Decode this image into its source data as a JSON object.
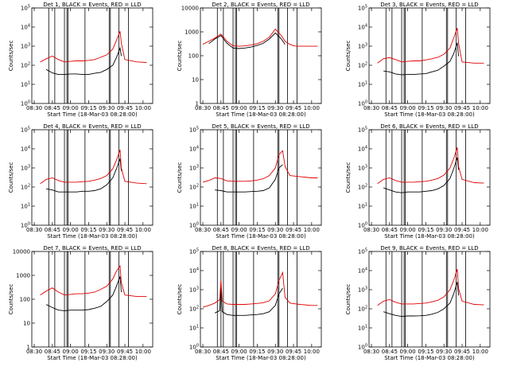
{
  "figure": {
    "xlabel": "Start Time (18-Mar-03 08:28:00)",
    "ylabel": "Counts/sec",
    "xticks": [
      "08:30",
      "08:45",
      "09:00",
      "09:15",
      "09:30",
      "09:45",
      "10:00"
    ],
    "colors": {
      "events": "#000000",
      "lld": "#e00000"
    }
  },
  "chart_data": [
    {
      "type": "line",
      "title": "Det 1, BLACK = Events, RED = LLD",
      "xlabel": "Start Time (18-Mar-03 08:28:00)",
      "ylabel": "Counts/sec",
      "yticks": [
        "10^0",
        "10^1",
        "10^2",
        "10^3",
        "10^4",
        "10^5"
      ],
      "ylim": [
        1,
        100000
      ],
      "xlim": [
        "08:28",
        "10:08"
      ],
      "log_y": true,
      "vertical_markers": [
        "08:42",
        "08:47",
        "08:55",
        "08:57",
        "08:58",
        "09:12",
        "09:32",
        "09:33",
        "09:40",
        "09:48"
      ],
      "x": [
        "08:35",
        "08:40",
        "08:45",
        "08:50",
        "08:55",
        "09:00",
        "09:05",
        "09:10",
        "09:15",
        "09:20",
        "09:25",
        "09:30",
        "09:35",
        "09:38",
        "09:41",
        "09:42",
        "09:45",
        "09:55",
        "10:03"
      ],
      "series": [
        {
          "name": "Events",
          "values": [
            null,
            60,
            40,
            33,
            33,
            35,
            35,
            33,
            33,
            38,
            42,
            60,
            100,
            250,
            800,
            300,
            null,
            null,
            null
          ]
        },
        {
          "name": "LLD",
          "values": [
            150,
            220,
            300,
            200,
            150,
            160,
            170,
            170,
            180,
            200,
            260,
            350,
            700,
            2000,
            6000,
            1500,
            200,
            150,
            140
          ]
        }
      ]
    },
    {
      "type": "line",
      "title": "Det 2, BLACK = Events, RED = LLD",
      "xlabel": "Start Time (18-Mar-03 08:28:00)",
      "ylabel": "Counts/sec",
      "yticks": [
        "1",
        "10",
        "100",
        "1000",
        "10000"
      ],
      "ylim": [
        1,
        10000
      ],
      "xlim": [
        "08:28",
        "10:08"
      ],
      "log_y": true,
      "vertical_markers": [
        "08:42",
        "08:47",
        "08:55",
        "08:57",
        "08:58",
        "09:12",
        "09:32",
        "09:33",
        "09:40",
        "09:48"
      ],
      "x": [
        "08:30",
        "08:35",
        "08:40",
        "08:45",
        "08:50",
        "08:55",
        "09:00",
        "09:05",
        "09:10",
        "09:15",
        "09:20",
        "09:25",
        "09:30",
        "09:35",
        "09:38",
        "09:42",
        "09:45",
        "09:48",
        "10:00",
        "10:05"
      ],
      "series": [
        {
          "name": "Events",
          "values": [
            null,
            320,
            500,
            700,
            330,
            210,
            200,
            210,
            230,
            270,
            330,
            500,
            900,
            500,
            300,
            null,
            null,
            null,
            null,
            null
          ]
        },
        {
          "name": "LLD",
          "values": [
            300,
            400,
            550,
            800,
            400,
            260,
            250,
            260,
            280,
            320,
            400,
            600,
            1300,
            700,
            400,
            300,
            260,
            250,
            250,
            250
          ]
        }
      ]
    },
    {
      "type": "line",
      "title": "Det 3, BLACK = Events, RED = LLD",
      "xlabel": "Start Time (18-Mar-03 08:28:00)",
      "ylabel": "Counts/sec",
      "yticks": [
        "10^0",
        "10^1",
        "10^2",
        "10^3",
        "10^4",
        "10^5"
      ],
      "ylim": [
        1,
        100000
      ],
      "xlim": [
        "08:28",
        "10:08"
      ],
      "log_y": true,
      "vertical_markers": [
        "08:42",
        "08:47",
        "08:55",
        "08:57",
        "08:58",
        "09:12",
        "09:32",
        "09:33",
        "09:40",
        "09:48"
      ],
      "x": [
        "08:35",
        "08:40",
        "08:45",
        "08:50",
        "08:55",
        "09:00",
        "09:05",
        "09:10",
        "09:15",
        "09:20",
        "09:25",
        "09:30",
        "09:35",
        "09:38",
        "09:41",
        "09:42",
        "09:45",
        "09:55",
        "10:03"
      ],
      "series": [
        {
          "name": "Events",
          "values": [
            null,
            50,
            45,
            35,
            32,
            33,
            33,
            35,
            36,
            45,
            55,
            90,
            160,
            400,
            1500,
            300,
            null,
            null,
            null
          ]
        },
        {
          "name": "LLD",
          "values": [
            130,
            220,
            250,
            200,
            150,
            160,
            170,
            170,
            190,
            220,
            260,
            380,
            800,
            2600,
            9000,
            1500,
            150,
            130,
            130
          ]
        }
      ]
    },
    {
      "type": "line",
      "title": "Det 4, BLACK = Events, RED = LLD",
      "xlabel": "Start Time (18-Mar-03 08:28:00)",
      "ylabel": "Counts/sec",
      "yticks": [
        "10^0",
        "10^1",
        "10^2",
        "10^3",
        "10^4",
        "10^5"
      ],
      "ylim": [
        1,
        100000
      ],
      "xlim": [
        "08:28",
        "10:08"
      ],
      "log_y": true,
      "vertical_markers": [
        "08:42",
        "08:47",
        "08:55",
        "08:57",
        "08:58",
        "09:12",
        "09:32",
        "09:33",
        "09:40",
        "09:48"
      ],
      "x": [
        "08:35",
        "08:40",
        "08:45",
        "08:50",
        "08:55",
        "09:00",
        "09:05",
        "09:10",
        "09:15",
        "09:20",
        "09:25",
        "09:30",
        "09:35",
        "09:38",
        "09:41",
        "09:42",
        "09:45",
        "09:55",
        "10:03"
      ],
      "series": [
        {
          "name": "Events",
          "values": [
            null,
            80,
            70,
            55,
            55,
            55,
            55,
            60,
            60,
            65,
            80,
            130,
            300,
            900,
            3000,
            700,
            null,
            null,
            null
          ]
        },
        {
          "name": "LLD",
          "values": [
            150,
            250,
            300,
            220,
            180,
            180,
            180,
            190,
            200,
            230,
            280,
            400,
            900,
            2500,
            9000,
            1000,
            200,
            160,
            150
          ]
        }
      ]
    },
    {
      "type": "line",
      "title": "Det 5, BLACK = Events, RED = LLD",
      "xlabel": "Start Time (18-Mar-03 08:28:00)",
      "ylabel": "Counts/sec",
      "yticks": [
        "10^0",
        "10^1",
        "10^2",
        "10^3",
        "10^4",
        "10^5"
      ],
      "ylim": [
        1,
        100000
      ],
      "xlim": [
        "08:28",
        "10:08"
      ],
      "log_y": true,
      "vertical_markers": [
        "08:42",
        "08:47",
        "08:55",
        "08:57",
        "08:58",
        "09:12",
        "09:32",
        "09:33",
        "09:40",
        "09:48"
      ],
      "x": [
        "08:30",
        "08:35",
        "08:40",
        "08:45",
        "08:50",
        "08:55",
        "09:00",
        "09:05",
        "09:10",
        "09:15",
        "09:20",
        "09:25",
        "09:30",
        "09:33",
        "09:36",
        "09:38",
        "09:42",
        "09:50",
        "10:00",
        "10:05"
      ],
      "series": [
        {
          "name": "Events",
          "values": [
            null,
            null,
            70,
            65,
            55,
            55,
            55,
            55,
            58,
            60,
            65,
            90,
            250,
            1000,
            1500,
            null,
            null,
            null,
            null,
            null
          ]
        },
        {
          "name": "LLD",
          "values": [
            180,
            220,
            300,
            280,
            210,
            200,
            200,
            200,
            210,
            230,
            270,
            400,
            1000,
            5000,
            8000,
            1200,
            400,
            350,
            300,
            300
          ]
        }
      ]
    },
    {
      "type": "line",
      "title": "Det 6, BLACK = Events, RED = LLD",
      "xlabel": "Start Time (18-Mar-03 08:28:00)",
      "ylabel": "Counts/sec",
      "yticks": [
        "10^0",
        "10^1",
        "10^2",
        "10^3",
        "10^4",
        "10^5"
      ],
      "ylim": [
        1,
        100000
      ],
      "xlim": [
        "08:28",
        "10:08"
      ],
      "log_y": true,
      "vertical_markers": [
        "08:42",
        "08:47",
        "08:55",
        "08:57",
        "08:58",
        "09:12",
        "09:32",
        "09:33",
        "09:40",
        "09:48"
      ],
      "x": [
        "08:35",
        "08:40",
        "08:45",
        "08:50",
        "08:55",
        "09:00",
        "09:05",
        "09:10",
        "09:15",
        "09:20",
        "09:25",
        "09:30",
        "09:35",
        "09:38",
        "09:41",
        "09:42",
        "09:45",
        "09:55",
        "10:03"
      ],
      "series": [
        {
          "name": "Events",
          "values": [
            null,
            90,
            70,
            55,
            50,
            55,
            55,
            55,
            60,
            65,
            80,
            120,
            280,
            900,
            3500,
            800,
            null,
            null,
            null
          ]
        },
        {
          "name": "LLD",
          "values": [
            150,
            250,
            300,
            220,
            180,
            180,
            180,
            190,
            200,
            230,
            280,
            420,
            1000,
            3000,
            12000,
            1200,
            250,
            170,
            160
          ]
        }
      ]
    },
    {
      "type": "line",
      "title": "Det 7, BLACK = Events, RED = LLD",
      "xlabel": "Start Time (18-Mar-03 08:28:00)",
      "ylabel": "Counts/sec",
      "yticks": [
        "1",
        "10",
        "100",
        "1000",
        "10000"
      ],
      "ylim": [
        1,
        10000
      ],
      "xlim": [
        "08:28",
        "10:08"
      ],
      "log_y": true,
      "vertical_markers": [
        "08:42",
        "08:47",
        "08:55",
        "08:57",
        "08:58",
        "09:12",
        "09:32",
        "09:33",
        "09:40",
        "09:48"
      ],
      "x": [
        "08:35",
        "08:40",
        "08:45",
        "08:50",
        "08:55",
        "09:00",
        "09:05",
        "09:10",
        "09:15",
        "09:20",
        "09:25",
        "09:30",
        "09:35",
        "09:38",
        "09:41",
        "09:42",
        "09:45",
        "09:55",
        "10:03"
      ],
      "series": [
        {
          "name": "Events",
          "values": [
            null,
            60,
            45,
            35,
            33,
            35,
            35,
            35,
            37,
            42,
            50,
            80,
            150,
            350,
            900,
            200,
            null,
            null,
            null
          ]
        },
        {
          "name": "LLD",
          "values": [
            150,
            220,
            300,
            200,
            150,
            160,
            170,
            170,
            180,
            200,
            260,
            350,
            700,
            1500,
            2500,
            500,
            150,
            130,
            130
          ]
        }
      ]
    },
    {
      "type": "line",
      "title": "Det 8, BLACK = Events, RED = LLD",
      "xlabel": "Start Time (18-Mar-03 08:28:00)",
      "ylabel": "Counts/sec",
      "yticks": [
        "10^0",
        "10^1",
        "10^2",
        "10^3",
        "10^4",
        "10^5"
      ],
      "ylim": [
        1,
        100000
      ],
      "xlim": [
        "08:28",
        "10:08"
      ],
      "log_y": true,
      "vertical_markers": [
        "08:42",
        "08:45",
        "08:47",
        "08:55",
        "08:57",
        "08:58",
        "09:12",
        "09:32",
        "09:33",
        "09:40",
        "09:48"
      ],
      "x": [
        "08:30",
        "08:35",
        "08:40",
        "08:44",
        "08:45",
        "08:46",
        "08:50",
        "08:55",
        "09:00",
        "09:05",
        "09:10",
        "09:15",
        "09:20",
        "09:25",
        "09:30",
        "09:33",
        "09:36",
        "09:38",
        "09:42",
        "09:50",
        "10:00",
        "10:05"
      ],
      "series": [
        {
          "name": "Events",
          "values": [
            null,
            null,
            60,
            80,
            2000,
            70,
            50,
            45,
            45,
            45,
            48,
            50,
            55,
            70,
            150,
            600,
            1200,
            null,
            null,
            null,
            null,
            null
          ]
        },
        {
          "name": "LLD",
          "values": [
            120,
            150,
            200,
            300,
            3000,
            250,
            180,
            170,
            170,
            170,
            180,
            190,
            210,
            260,
            600,
            3000,
            8000,
            400,
            200,
            170,
            150,
            150
          ]
        }
      ]
    },
    {
      "type": "line",
      "title": "Det 9, BLACK = Events, RED = LLD",
      "xlabel": "Start Time (18-Mar-03 08:28:00)",
      "ylabel": "Counts/sec",
      "yticks": [
        "10^0",
        "10^1",
        "10^2",
        "10^3",
        "10^4",
        "10^5"
      ],
      "ylim": [
        1,
        100000
      ],
      "xlim": [
        "08:28",
        "10:08"
      ],
      "log_y": true,
      "vertical_markers": [
        "08:42",
        "08:47",
        "08:55",
        "08:57",
        "08:58",
        "09:12",
        "09:32",
        "09:33",
        "09:40",
        "09:48"
      ],
      "x": [
        "08:35",
        "08:40",
        "08:45",
        "08:50",
        "08:55",
        "09:00",
        "09:05",
        "09:10",
        "09:15",
        "09:20",
        "09:25",
        "09:30",
        "09:35",
        "09:38",
        "09:41",
        "09:42",
        "09:45",
        "09:55",
        "10:03"
      ],
      "series": [
        {
          "name": "Events",
          "values": [
            null,
            70,
            55,
            45,
            40,
            42,
            42,
            43,
            45,
            52,
            65,
            100,
            200,
            600,
            2500,
            500,
            null,
            null,
            null
          ]
        },
        {
          "name": "LLD",
          "values": [
            150,
            250,
            300,
            220,
            180,
            180,
            180,
            190,
            200,
            230,
            280,
            420,
            1000,
            3000,
            12000,
            1200,
            250,
            170,
            160
          ]
        }
      ]
    }
  ]
}
